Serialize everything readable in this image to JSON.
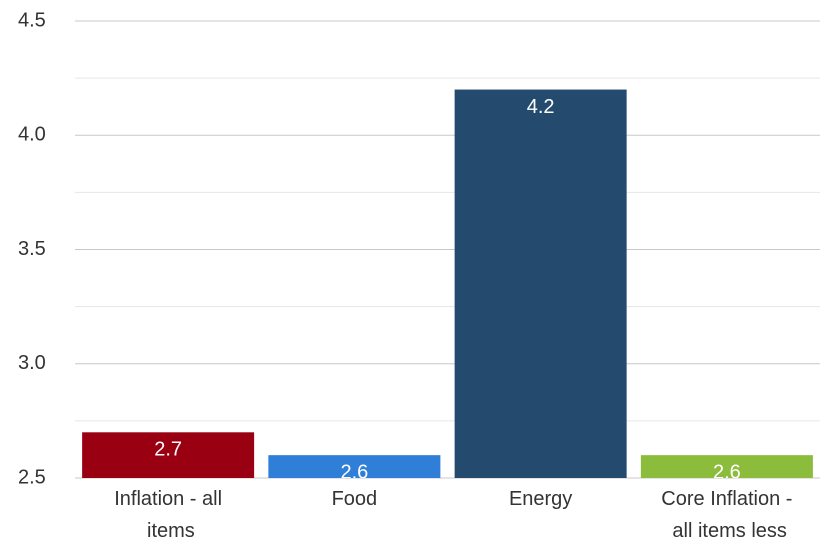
{
  "chart_data": {
    "type": "bar",
    "categories": [
      "Inflation - all items",
      "Food",
      "Energy",
      "Core Inflation - all items less"
    ],
    "values": [
      2.7,
      2.6,
      4.2,
      2.6
    ],
    "colors": [
      "#990011",
      "#2f7ed8",
      "#244b6e",
      "#8bbc3c"
    ],
    "ylim": [
      2.5,
      4.5
    ],
    "yticks": [
      2.5,
      {
        "value": 3,
        "label": "3.0"
      },
      3.5,
      {
        "value": 4,
        "label": "4.0"
      },
      4.5
    ],
    "minor_yticks": [
      2.75,
      3.25,
      3.75,
      4.25
    ],
    "grid": true
  }
}
